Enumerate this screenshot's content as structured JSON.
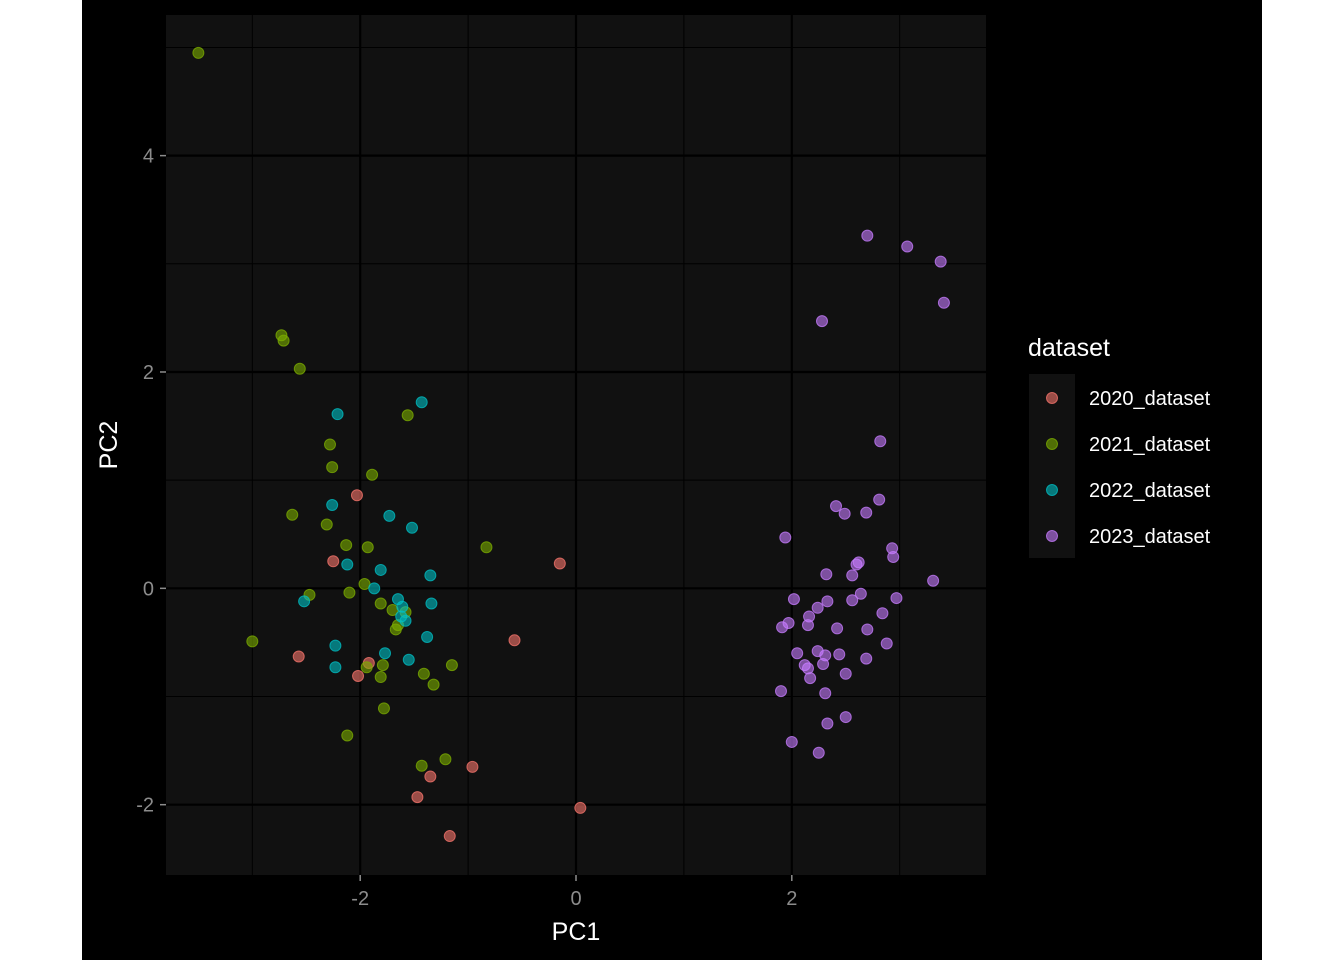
{
  "chart_data": {
    "type": "scatter",
    "title": "",
    "xlabel": "PC1",
    "ylabel": "PC2",
    "xlim": [
      -3.8,
      3.8
    ],
    "ylim": [
      -2.65,
      5.3
    ],
    "x_ticks": [
      -2,
      0,
      2
    ],
    "x_tick_labels": [
      "-2",
      "0",
      "2"
    ],
    "y_ticks": [
      -2,
      0,
      2,
      4
    ],
    "y_tick_labels": [
      "-2",
      "0",
      "2",
      "4"
    ],
    "grid": true,
    "legend": {
      "title": "dataset",
      "position": "right"
    },
    "series": [
      {
        "name": "2020_dataset",
        "color": "#F8766D",
        "points": [
          [
            -2.03,
            0.86
          ],
          [
            -0.15,
            0.23
          ],
          [
            -2.25,
            0.25
          ],
          [
            -1.92,
            -0.69
          ],
          [
            -2.57,
            -0.63
          ],
          [
            -2.02,
            -0.81
          ],
          [
            -0.57,
            -0.48
          ],
          [
            -1.35,
            -1.74
          ],
          [
            -0.96,
            -1.65
          ],
          [
            -1.47,
            -1.93
          ],
          [
            -1.17,
            -2.29
          ],
          [
            0.04,
            -2.03
          ]
        ]
      },
      {
        "name": "2021_dataset",
        "color": "#7CAE00",
        "points": [
          [
            -3.5,
            4.95
          ],
          [
            -2.73,
            2.34
          ],
          [
            -2.71,
            2.29
          ],
          [
            -2.56,
            2.03
          ],
          [
            -2.28,
            1.33
          ],
          [
            -2.26,
            1.12
          ],
          [
            -1.56,
            1.6
          ],
          [
            -1.89,
            1.05
          ],
          [
            -2.63,
            0.68
          ],
          [
            -2.31,
            0.59
          ],
          [
            -2.13,
            0.4
          ],
          [
            -1.93,
            0.38
          ],
          [
            -0.83,
            0.38
          ],
          [
            -1.96,
            0.04
          ],
          [
            -2.1,
            -0.04
          ],
          [
            -2.47,
            -0.06
          ],
          [
            -1.81,
            -0.14
          ],
          [
            -1.7,
            -0.2
          ],
          [
            -1.58,
            -0.22
          ],
          [
            -1.65,
            -0.34
          ],
          [
            -1.67,
            -0.38
          ],
          [
            -3.0,
            -0.49
          ],
          [
            -1.94,
            -0.73
          ],
          [
            -1.79,
            -0.71
          ],
          [
            -1.81,
            -0.82
          ],
          [
            -1.41,
            -0.79
          ],
          [
            -1.15,
            -0.71
          ],
          [
            -1.32,
            -0.89
          ],
          [
            -1.78,
            -1.11
          ],
          [
            -2.12,
            -1.36
          ],
          [
            -1.43,
            -1.64
          ],
          [
            -1.21,
            -1.58
          ]
        ]
      },
      {
        "name": "2022_dataset",
        "color": "#00BFC4",
        "points": [
          [
            -1.43,
            1.72
          ],
          [
            -2.21,
            1.61
          ],
          [
            -2.26,
            0.77
          ],
          [
            -1.73,
            0.67
          ],
          [
            -1.52,
            0.56
          ],
          [
            -2.12,
            0.22
          ],
          [
            -1.81,
            0.17
          ],
          [
            -1.35,
            0.12
          ],
          [
            -1.87,
            0.0
          ],
          [
            -1.65,
            -0.1
          ],
          [
            -1.61,
            -0.17
          ],
          [
            -2.52,
            -0.12
          ],
          [
            -1.34,
            -0.14
          ],
          [
            -1.62,
            -0.26
          ],
          [
            -1.58,
            -0.3
          ],
          [
            -1.38,
            -0.45
          ],
          [
            -2.23,
            -0.53
          ],
          [
            -1.77,
            -0.6
          ],
          [
            -1.55,
            -0.66
          ],
          [
            -2.23,
            -0.73
          ]
        ]
      },
      {
        "name": "2023_dataset",
        "color": "#C77CFF",
        "points": [
          [
            2.7,
            3.26
          ],
          [
            3.07,
            3.16
          ],
          [
            3.38,
            3.02
          ],
          [
            3.41,
            2.64
          ],
          [
            2.28,
            2.47
          ],
          [
            2.82,
            1.36
          ],
          [
            2.81,
            0.82
          ],
          [
            2.41,
            0.76
          ],
          [
            2.49,
            0.69
          ],
          [
            2.69,
            0.7
          ],
          [
            1.94,
            0.47
          ],
          [
            2.93,
            0.37
          ],
          [
            2.94,
            0.29
          ],
          [
            2.6,
            0.22
          ],
          [
            2.62,
            0.24
          ],
          [
            2.32,
            0.13
          ],
          [
            2.56,
            0.12
          ],
          [
            2.64,
            -0.05
          ],
          [
            3.31,
            0.07
          ],
          [
            2.97,
            -0.09
          ],
          [
            2.02,
            -0.1
          ],
          [
            2.33,
            -0.12
          ],
          [
            2.56,
            -0.11
          ],
          [
            2.24,
            -0.18
          ],
          [
            2.84,
            -0.23
          ],
          [
            2.16,
            -0.26
          ],
          [
            1.97,
            -0.32
          ],
          [
            1.91,
            -0.36
          ],
          [
            2.15,
            -0.34
          ],
          [
            2.42,
            -0.37
          ],
          [
            2.7,
            -0.38
          ],
          [
            2.88,
            -0.51
          ],
          [
            2.05,
            -0.6
          ],
          [
            2.24,
            -0.58
          ],
          [
            2.31,
            -0.62
          ],
          [
            2.44,
            -0.61
          ],
          [
            2.12,
            -0.71
          ],
          [
            2.15,
            -0.74
          ],
          [
            2.29,
            -0.7
          ],
          [
            2.69,
            -0.65
          ],
          [
            2.5,
            -0.79
          ],
          [
            2.17,
            -0.83
          ],
          [
            1.9,
            -0.95
          ],
          [
            2.31,
            -0.97
          ],
          [
            2.33,
            -1.25
          ],
          [
            2.5,
            -1.19
          ],
          [
            2.0,
            -1.42
          ],
          [
            2.25,
            -1.52
          ]
        ]
      }
    ]
  }
}
